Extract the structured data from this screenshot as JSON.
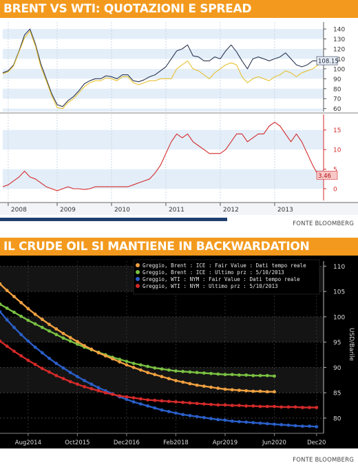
{
  "sections": [
    {
      "title": "BRENT VS WTI: QUOTAZIONI E SPREAD",
      "source": "FONTE BLOOMBERG"
    },
    {
      "title": "IL CRUDE OIL SI MANTIENE IN BACKWARDATION",
      "source": "FONTE BLOOMBERG"
    }
  ],
  "chart_data": [
    {
      "type": "line",
      "panels": [
        {
          "name": "price",
          "ylim": [
            57,
            147
          ],
          "yticks": [
            "140",
            "130",
            "120",
            "110",
            "100",
            "90",
            "80",
            "70",
            "60"
          ],
          "ytick_values": [
            140,
            130,
            120,
            110,
            100,
            90,
            80,
            70,
            60
          ],
          "last_value_label": "108.15",
          "last_value": 108.15,
          "series": [
            {
              "color": "#2a3550",
              "x": [
                2008.0,
                2008.1,
                2008.2,
                2008.3,
                2008.4,
                2008.5,
                2008.6,
                2008.7,
                2008.8,
                2008.9,
                2009.0,
                2009.1,
                2009.2,
                2009.3,
                2009.4,
                2009.5,
                2009.6,
                2009.7,
                2009.8,
                2009.9,
                2010.0,
                2010.1,
                2010.2,
                2010.3,
                2010.4,
                2010.5,
                2010.6,
                2010.7,
                2010.8,
                2010.9,
                2011.0,
                2011.1,
                2011.2,
                2011.3,
                2011.4,
                2011.5,
                2011.6,
                2011.7,
                2011.8,
                2011.9,
                2012.0,
                2012.1,
                2012.2,
                2012.3,
                2012.4,
                2012.5,
                2012.6,
                2012.7,
                2012.8,
                2012.9,
                2013.0,
                2013.1,
                2013.2,
                2013.3,
                2013.4,
                2013.5,
                2013.6,
                2013.7,
                2013.8
              ],
              "y": [
                96,
                98,
                104,
                118,
                134,
                140,
                125,
                105,
                90,
                75,
                64,
                62,
                68,
                72,
                78,
                85,
                88,
                90,
                90,
                93,
                92,
                90,
                94,
                94,
                88,
                87,
                89,
                92,
                94,
                98,
                102,
                110,
                118,
                120,
                124,
                113,
                112,
                108,
                108,
                112,
                110,
                118,
                124,
                117,
                108,
                100,
                110,
                112,
                110,
                108,
                110,
                112,
                116,
                110,
                104,
                102,
                104,
                108,
                108
              ]
            },
            {
              "color": "#e8c030",
              "x": [
                2008.0,
                2008.1,
                2008.2,
                2008.3,
                2008.4,
                2008.5,
                2008.6,
                2008.7,
                2008.8,
                2008.9,
                2009.0,
                2009.1,
                2009.2,
                2009.3,
                2009.4,
                2009.5,
                2009.6,
                2009.7,
                2009.8,
                2009.9,
                2010.0,
                2010.1,
                2010.2,
                2010.3,
                2010.4,
                2010.5,
                2010.6,
                2010.7,
                2010.8,
                2010.9,
                2011.0,
                2011.1,
                2011.2,
                2011.3,
                2011.4,
                2011.5,
                2011.6,
                2011.7,
                2011.8,
                2011.9,
                2012.0,
                2012.1,
                2012.2,
                2012.3,
                2012.4,
                2012.5,
                2012.6,
                2012.7,
                2012.8,
                2012.9,
                2013.0,
                2013.1,
                2013.2,
                2013.3,
                2013.4,
                2013.5,
                2013.6,
                2013.7,
                2013.8
              ],
              "y": [
                95,
                97,
                103,
                117,
                131,
                138,
                123,
                102,
                88,
                73,
                61,
                60,
                66,
                70,
                76,
                82,
                86,
                88,
                88,
                91,
                90,
                88,
                92,
                92,
                86,
                84,
                86,
                88,
                88,
                90,
                90,
                90,
                100,
                104,
                108,
                100,
                98,
                94,
                90,
                96,
                100,
                104,
                106,
                104,
                92,
                86,
                90,
                92,
                90,
                88,
                92,
                94,
                98,
                96,
                92,
                96,
                98,
                100,
                104
              ]
            }
          ]
        },
        {
          "name": "spread",
          "ylim": [
            -3,
            19
          ],
          "yticks": [
            "15",
            "10",
            "5",
            "0"
          ],
          "ytick_values": [
            15,
            10,
            5,
            0
          ],
          "last_value_label": "3.46",
          "last_value": 3.46,
          "series": [
            {
              "color": "#d42a2a",
              "x": [
                2008.0,
                2008.1,
                2008.2,
                2008.3,
                2008.4,
                2008.5,
                2008.6,
                2008.7,
                2008.8,
                2008.9,
                2009.0,
                2009.1,
                2009.2,
                2009.3,
                2009.4,
                2009.5,
                2009.6,
                2009.7,
                2009.8,
                2009.9,
                2010.0,
                2010.1,
                2010.2,
                2010.3,
                2010.4,
                2010.5,
                2010.6,
                2010.7,
                2010.8,
                2010.9,
                2011.0,
                2011.1,
                2011.2,
                2011.3,
                2011.4,
                2011.5,
                2011.6,
                2011.7,
                2011.8,
                2011.9,
                2012.0,
                2012.1,
                2012.2,
                2012.3,
                2012.4,
                2012.5,
                2012.6,
                2012.7,
                2012.8,
                2012.9,
                2013.0,
                2013.1,
                2013.2,
                2013.3,
                2013.4,
                2013.5,
                2013.6,
                2013.7,
                2013.8
              ],
              "y": [
                0.5,
                1,
                2,
                3,
                4.5,
                3,
                2.5,
                1.5,
                0.5,
                0,
                -0.5,
                0,
                0.5,
                0,
                0,
                -0.2,
                0,
                0.5,
                0.5,
                0.5,
                0.5,
                0.5,
                0.5,
                0.5,
                1,
                1.5,
                2,
                2.5,
                4,
                6,
                9,
                12,
                14,
                13,
                14,
                12,
                11,
                10,
                9,
                9,
                9,
                10,
                12,
                14,
                14,
                12,
                13,
                14,
                14,
                16,
                17,
                16,
                14,
                12,
                14,
                12,
                9,
                6,
                3.5
              ]
            }
          ]
        }
      ],
      "x_ticks": [
        "2008",
        "2009",
        "2010",
        "2011",
        "2012",
        "2013"
      ],
      "x_tick_values": [
        2008.1,
        2009.0,
        2010.0,
        2011.0,
        2012.0,
        2013.0
      ],
      "xlim": [
        2008.0,
        2013.9
      ],
      "grid": true
    },
    {
      "type": "line",
      "ylabel": "USD/Barile",
      "ylim": [
        77,
        111
      ],
      "yticks": [
        "110",
        "105",
        "100",
        "95",
        "90",
        "85",
        "80"
      ],
      "ytick_values": [
        110,
        105,
        100,
        95,
        90,
        85,
        80
      ],
      "x_ticks": [
        "Aug2014",
        "Oct2015",
        "Dec2016",
        "Feb2018",
        "Apr2019",
        "Jun2020",
        "Dec20"
      ],
      "x_tick_values": [
        0,
        14,
        28,
        42,
        56,
        70,
        82
      ],
      "xlim": [
        -8,
        84
      ],
      "legend_position": "top-right",
      "legend": [
        "Greggio, Brent : ICE : Fair Value : Dati tempo reale",
        "Greggio, Brent : ICE : Ultimo prz : 5/10/2013",
        "Greggio, WTI : NYM : Fair Value : Dati tempo reale",
        "Greggio, WTI : NYM : Ultimo prz : 5/10/2013"
      ],
      "series": [
        {
          "color": "#f0a040",
          "x": [
            -8,
            -6,
            -4,
            -2,
            0,
            2,
            4,
            6,
            8,
            10,
            12,
            14,
            16,
            18,
            20,
            22,
            24,
            26,
            28,
            30,
            32,
            34,
            36,
            38,
            40,
            42,
            44,
            46,
            48,
            50,
            52,
            54,
            56,
            58,
            60,
            62,
            64,
            66,
            68,
            70
          ],
          "y": [
            106.5,
            105.2,
            104,
            102.8,
            101.6,
            100.5,
            99.5,
            98.5,
            97.6,
            96.7,
            95.9,
            95.1,
            94.3,
            93.6,
            92.9,
            92.3,
            91.7,
            91.1,
            90.5,
            90,
            89.5,
            89,
            88.6,
            88.2,
            87.8,
            87.4,
            87.1,
            86.8,
            86.5,
            86.3,
            86.1,
            85.9,
            85.7,
            85.6,
            85.5,
            85.4,
            85.3,
            85.3,
            85.2,
            85.2
          ]
        },
        {
          "color": "#7ac142",
          "x": [
            -8,
            -6,
            -4,
            -2,
            0,
            2,
            4,
            6,
            8,
            10,
            12,
            14,
            16,
            18,
            20,
            22,
            24,
            26,
            28,
            30,
            32,
            34,
            36,
            38,
            40,
            42,
            44,
            46,
            48,
            50,
            52,
            54,
            56,
            58,
            60,
            62,
            64,
            66,
            68,
            70
          ],
          "y": [
            102.5,
            101.7,
            100.9,
            100.1,
            99.3,
            98.6,
            97.9,
            97.2,
            96.5,
            95.8,
            95.2,
            94.6,
            94,
            93.5,
            93,
            92.5,
            92,
            91.6,
            91.2,
            90.8,
            90.5,
            90.2,
            89.9,
            89.7,
            89.5,
            89.3,
            89.2,
            89.1,
            89,
            88.9,
            88.8,
            88.7,
            88.6,
            88.6,
            88.5,
            88.5,
            88.4,
            88.4,
            88.4,
            88.3
          ]
        },
        {
          "color": "#2a5fc8",
          "x": [
            -8,
            -6,
            -4,
            -2,
            0,
            2,
            4,
            6,
            8,
            10,
            12,
            14,
            16,
            18,
            20,
            22,
            24,
            26,
            28,
            30,
            32,
            34,
            36,
            38,
            40,
            42,
            44,
            46,
            48,
            50,
            52,
            54,
            56,
            58,
            60,
            62,
            64,
            66,
            68,
            70,
            72,
            74,
            76,
            78,
            80,
            82
          ],
          "y": [
            101,
            99.4,
            97.9,
            96.5,
            95.2,
            94,
            92.9,
            91.8,
            90.8,
            89.9,
            89,
            88.2,
            87.4,
            86.7,
            86,
            85.4,
            84.8,
            84.2,
            83.7,
            83.2,
            82.8,
            82.4,
            82,
            81.6,
            81.3,
            81,
            80.7,
            80.5,
            80.3,
            80.1,
            79.9,
            79.7,
            79.6,
            79.4,
            79.3,
            79.2,
            79.1,
            79,
            78.9,
            78.8,
            78.7,
            78.6,
            78.5,
            78.4,
            78.4,
            78.3
          ]
        },
        {
          "color": "#d42a2a",
          "x": [
            -8,
            -6,
            -4,
            -2,
            0,
            2,
            4,
            6,
            8,
            10,
            12,
            14,
            16,
            18,
            20,
            22,
            24,
            26,
            28,
            30,
            32,
            34,
            36,
            38,
            40,
            42,
            44,
            46,
            48,
            50,
            52,
            54,
            56,
            58,
            60,
            62,
            64,
            66,
            68,
            70,
            72,
            74,
            76,
            78,
            80,
            82
          ],
          "y": [
            95.2,
            94.2,
            93.2,
            92.3,
            91.4,
            90.6,
            89.8,
            89.1,
            88.4,
            87.8,
            87.2,
            86.7,
            86.2,
            85.8,
            85.4,
            85,
            84.7,
            84.4,
            84.2,
            84,
            83.8,
            83.6,
            83.5,
            83.4,
            83.3,
            83.2,
            83.1,
            83,
            82.9,
            82.8,
            82.7,
            82.6,
            82.6,
            82.5,
            82.5,
            82.4,
            82.4,
            82.3,
            82.3,
            82.3,
            82.2,
            82.2,
            82.2,
            82.1,
            82.1,
            82.1
          ]
        }
      ]
    }
  ]
}
